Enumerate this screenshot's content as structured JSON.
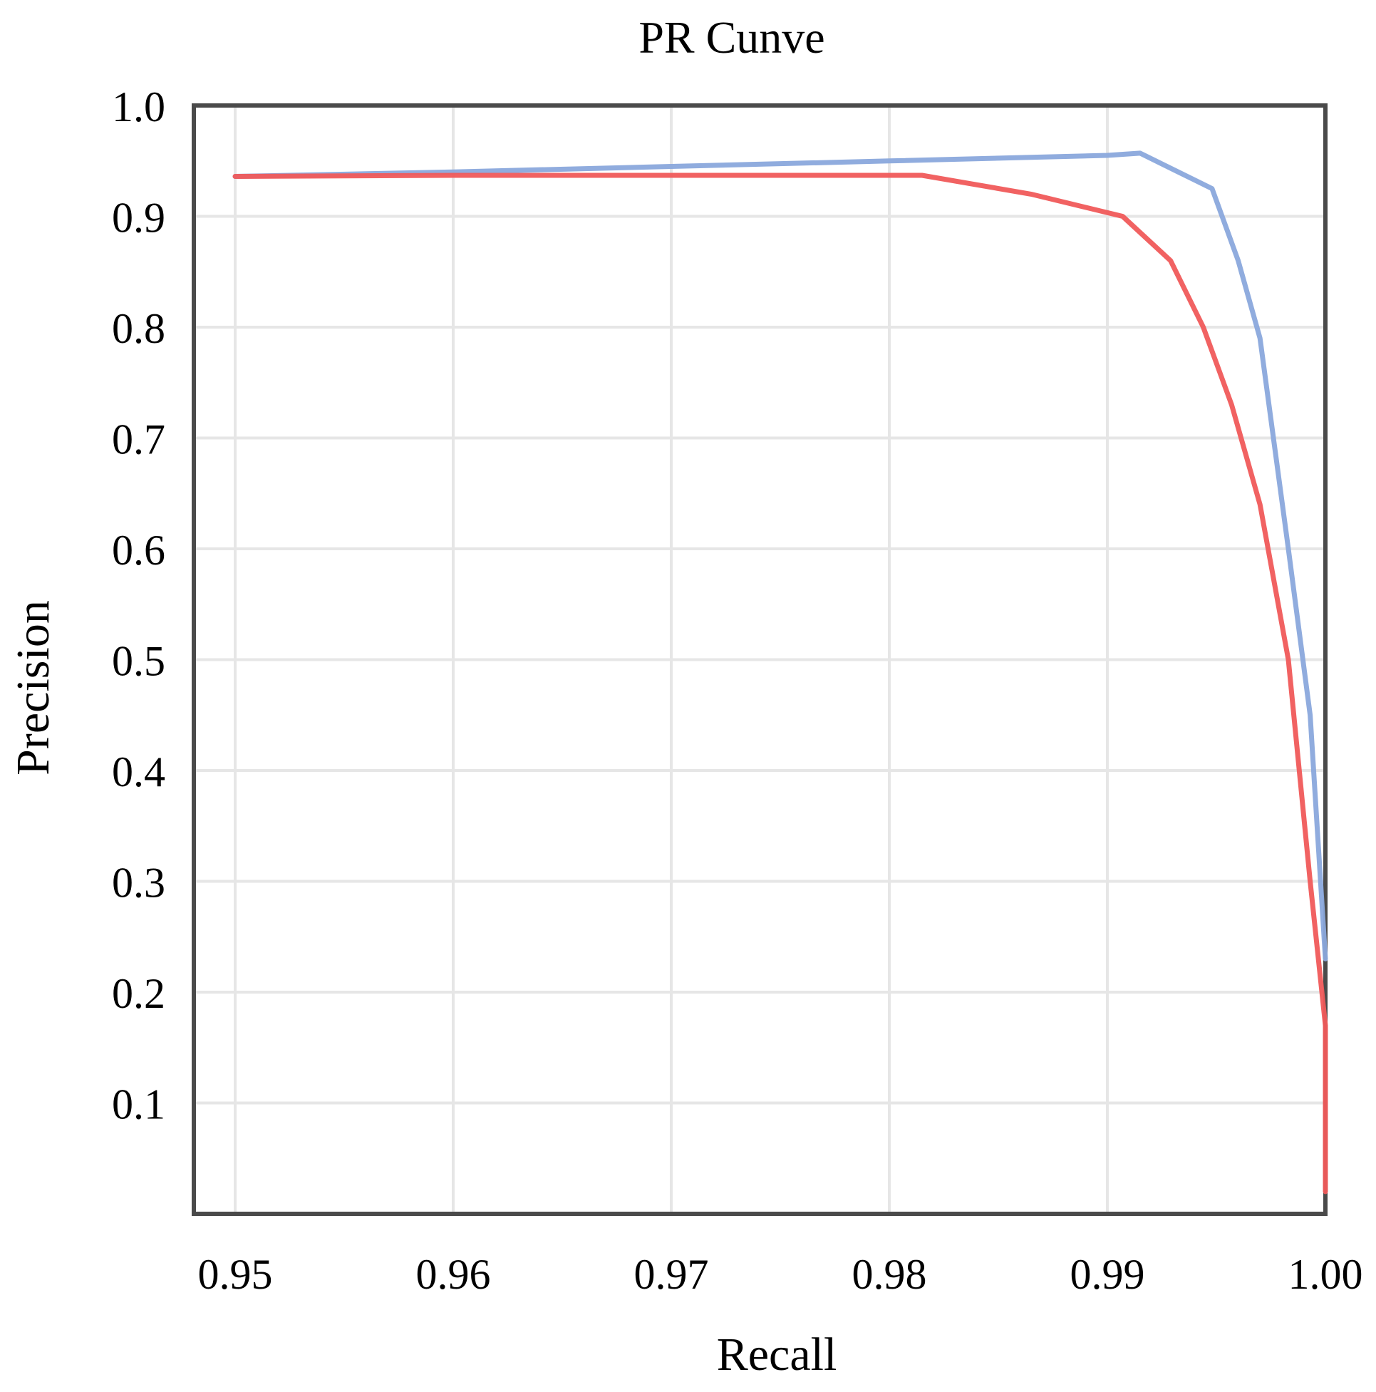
{
  "chart_data": {
    "type": "line",
    "title": "PR Cunve",
    "xlabel": "Recall",
    "ylabel": "Precision",
    "xlim": [
      0.948,
      1.0
    ],
    "ylim": [
      0.0,
      1.0
    ],
    "x_ticks": [
      0.95,
      0.96,
      0.97,
      0.98,
      0.99,
      1.0
    ],
    "x_tick_labels": [
      "0.95",
      "0.96",
      "0.97",
      "0.98",
      "0.99",
      "1.00"
    ],
    "y_ticks": [
      0.1,
      0.2,
      0.3,
      0.4,
      0.5,
      0.6,
      0.7,
      0.8,
      0.9,
      1.0
    ],
    "y_tick_labels": [
      "0.1",
      "0.2",
      "0.3",
      "0.4",
      "0.5",
      "0.6",
      "0.7",
      "0.8",
      "0.9",
      "1.0"
    ],
    "grid": true,
    "legend": null,
    "series": [
      {
        "color": "#8aa8dc",
        "x": [
          0.95,
          0.96,
          0.97,
          0.98,
          0.99,
          0.9915,
          0.9948,
          0.996,
          0.997,
          0.9983,
          0.9993,
          1.0
        ],
        "y": [
          0.936,
          0.94,
          0.945,
          0.95,
          0.955,
          0.957,
          0.925,
          0.86,
          0.79,
          0.6,
          0.45,
          0.23
        ]
      },
      {
        "color": "#f05a5a",
        "x": [
          0.95,
          0.96,
          0.97,
          0.98,
          0.9815,
          0.9865,
          0.9907,
          0.9929,
          0.9944,
          0.9957,
          0.997,
          0.9983,
          0.9993,
          1.0,
          1.0
        ],
        "y": [
          0.936,
          0.937,
          0.937,
          0.937,
          0.937,
          0.92,
          0.9,
          0.86,
          0.8,
          0.73,
          0.64,
          0.5,
          0.3,
          0.17,
          0.02
        ]
      }
    ]
  }
}
